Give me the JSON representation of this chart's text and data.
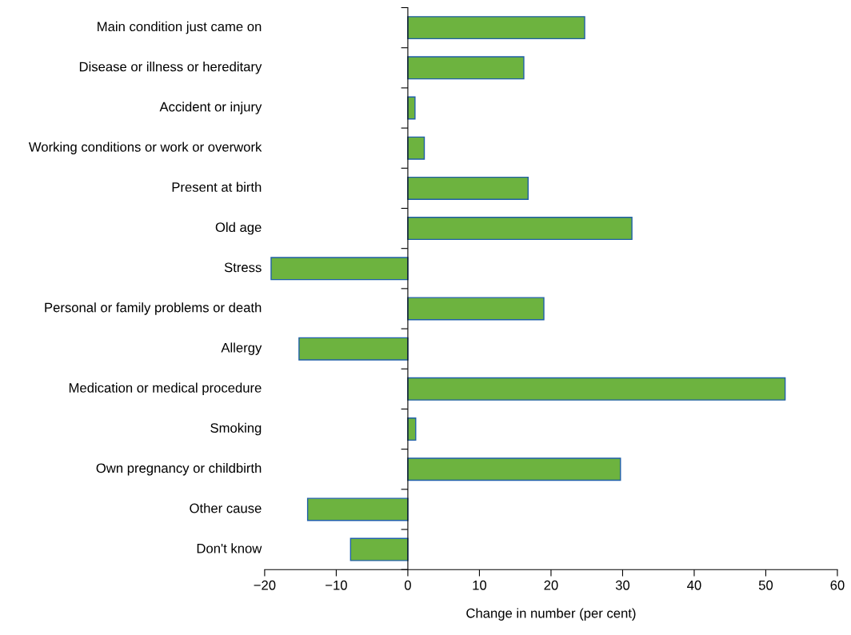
{
  "chart_data": {
    "type": "bar",
    "orientation": "horizontal",
    "xlabel": "Change in number (per cent)",
    "categories": [
      "Main condition just came on",
      "Disease or illness or hereditary",
      "Accident or injury",
      "Working conditions or work or overwork",
      "Present at birth",
      "Old age",
      "Stress",
      "Personal or family problems or death",
      "Allergy",
      "Medication or medical procedure",
      "Smoking",
      "Own pregnancy or childbirth",
      "Other cause",
      "Don't know"
    ],
    "values": [
      24.7,
      16.2,
      1.0,
      2.3,
      16.8,
      31.3,
      -19.1,
      19.0,
      -15.2,
      52.7,
      1.1,
      29.7,
      -14.0,
      -8.0
    ],
    "color": "#6db33f",
    "xlim": [
      -20,
      60
    ],
    "xticks": [
      {
        "value": -20,
        "label": "−20"
      },
      {
        "value": -10,
        "label": "−10"
      },
      0,
      10,
      20,
      30,
      40,
      50,
      60
    ],
    "legend": false
  }
}
